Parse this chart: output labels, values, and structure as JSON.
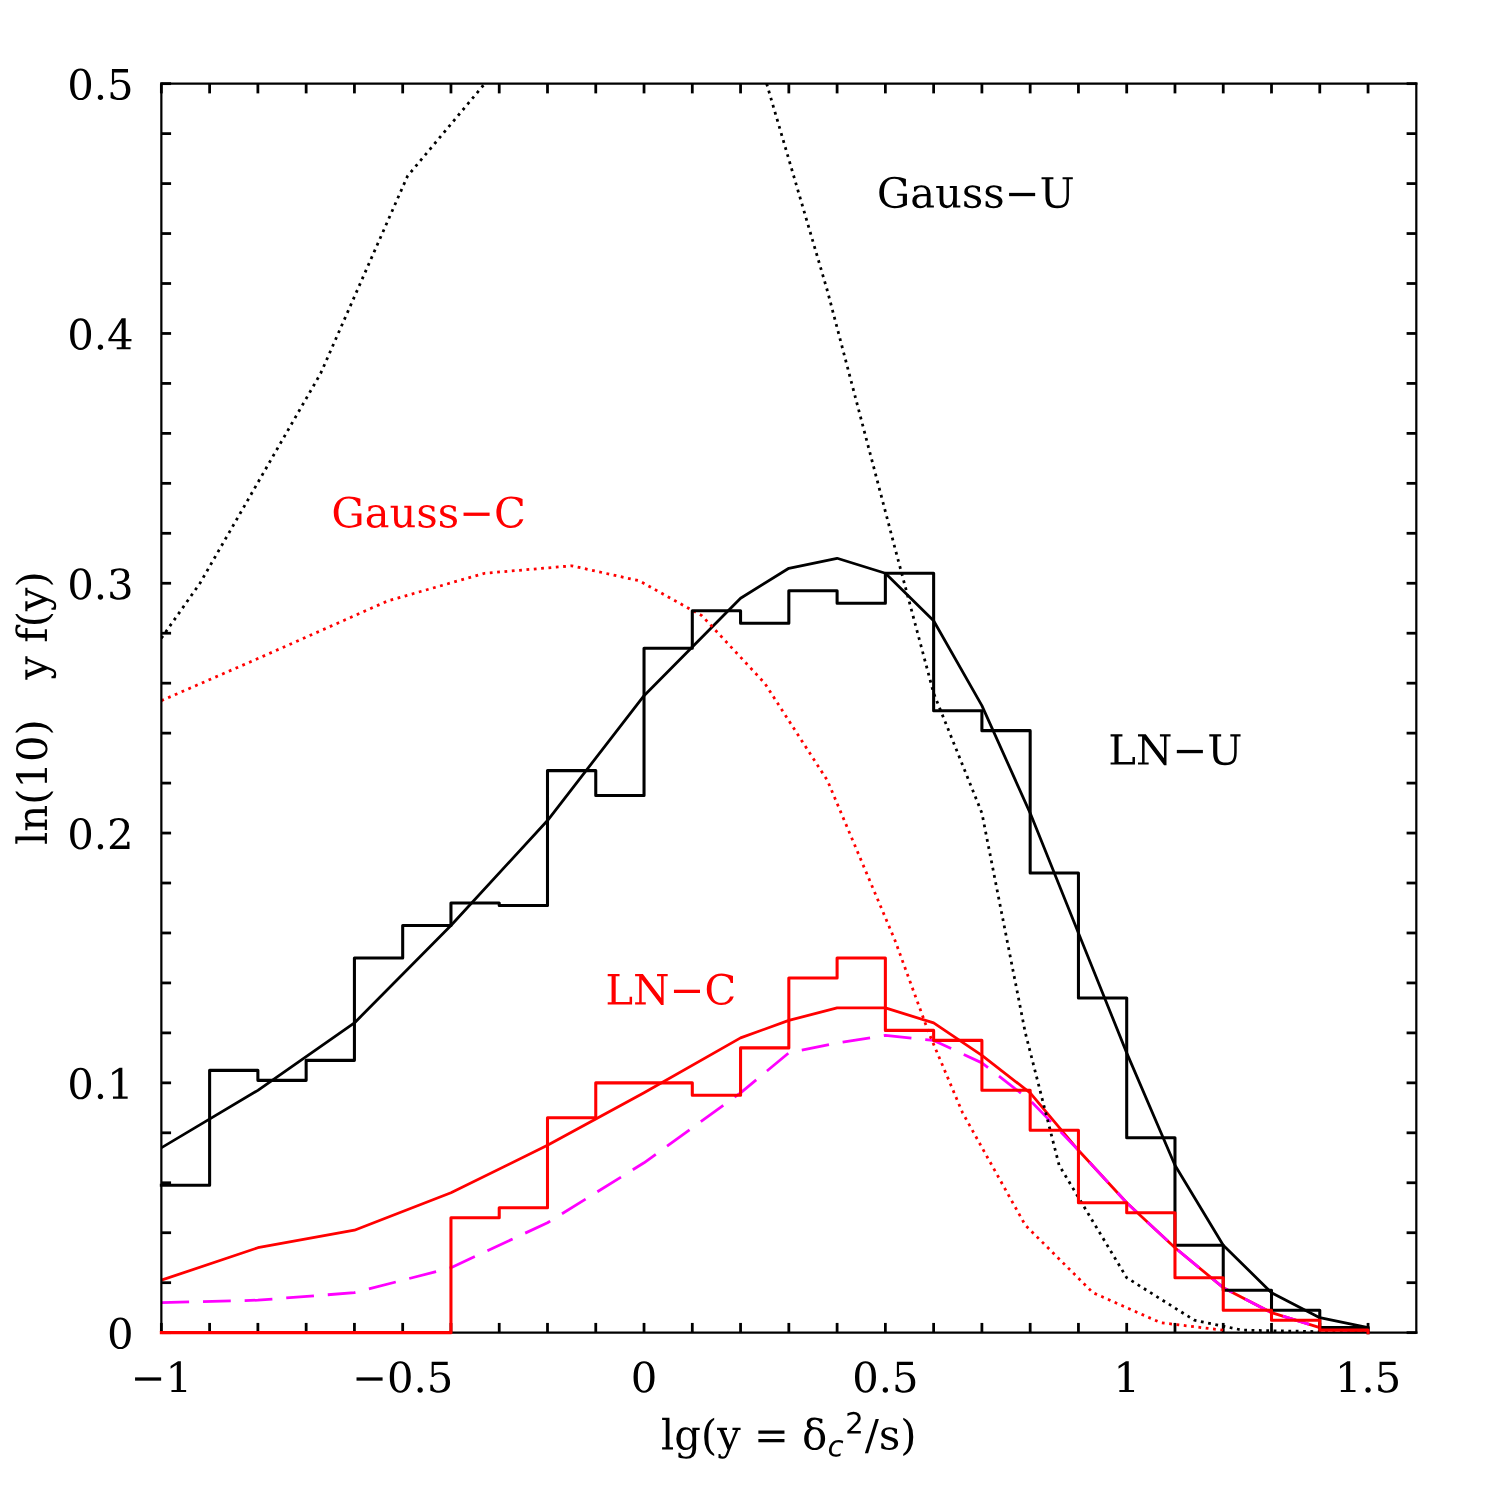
{
  "chart_data": {
    "type": "line",
    "xlabel": "lg(y = δ$_{c}$$^{2}$/s)",
    "ylabel": "ln(10)   y f(y)",
    "xlim": [
      -1,
      1.6
    ],
    "ylim": [
      0,
      0.5
    ],
    "xticks": [
      {
        "value": -1,
        "label": "−1"
      },
      {
        "value": -0.9,
        "label": null
      },
      {
        "value": -0.8,
        "label": null
      },
      {
        "value": -0.7,
        "label": null
      },
      {
        "value": -0.6,
        "label": null
      },
      {
        "value": -0.5,
        "label": "−0.5"
      },
      {
        "value": -0.4,
        "label": null
      },
      {
        "value": -0.3,
        "label": null
      },
      {
        "value": -0.2,
        "label": null
      },
      {
        "value": -0.1,
        "label": null
      },
      0,
      {
        "value": 0.1,
        "label": null
      },
      {
        "value": 0.2,
        "label": null
      },
      {
        "value": 0.3,
        "label": null
      },
      {
        "value": 0.4,
        "label": null
      },
      0.5,
      {
        "value": 0.6,
        "label": null
      },
      {
        "value": 0.7,
        "label": null
      },
      {
        "value": 0.8,
        "label": null
      },
      {
        "value": 0.9,
        "label": null
      },
      1,
      {
        "value": 1.1,
        "label": null
      },
      {
        "value": 1.2,
        "label": null
      },
      {
        "value": 1.3,
        "label": null
      },
      {
        "value": 1.4,
        "label": null
      },
      1.5
    ],
    "yticks": [
      0,
      {
        "value": 0.02,
        "label": null
      },
      {
        "value": 0.04,
        "label": null
      },
      {
        "value": 0.06,
        "label": null
      },
      {
        "value": 0.08,
        "label": null
      },
      0.1,
      {
        "value": 0.12,
        "label": null
      },
      {
        "value": 0.14,
        "label": null
      },
      {
        "value": 0.16,
        "label": null
      },
      {
        "value": 0.18,
        "label": null
      },
      0.2,
      {
        "value": 0.22,
        "label": null
      },
      {
        "value": 0.24,
        "label": null
      },
      {
        "value": 0.26,
        "label": null
      },
      {
        "value": 0.28,
        "label": null
      },
      0.3,
      {
        "value": 0.32,
        "label": null
      },
      {
        "value": 0.34,
        "label": null
      },
      {
        "value": 0.36,
        "label": null
      },
      {
        "value": 0.38,
        "label": null
      },
      0.4,
      {
        "value": 0.42,
        "label": null
      },
      {
        "value": 0.44,
        "label": null
      },
      {
        "value": 0.46,
        "label": null
      },
      {
        "value": 0.48,
        "label": null
      },
      0.5
    ],
    "grid": false,
    "legend": false,
    "series": [
      {
        "name": "LN−U",
        "color": "#000000",
        "line_style": "solid",
        "x": [
          -1,
          -0.8,
          -0.6,
          -0.4,
          -0.2,
          0,
          0.2,
          0.3,
          0.4,
          0.5,
          0.6,
          0.7,
          0.8,
          0.9,
          1,
          1.1,
          1.2,
          1.3,
          1.4,
          1.5
        ],
        "values": [
          0.074,
          0.097,
          0.124,
          0.163,
          0.205,
          0.255,
          0.294,
          0.306,
          0.31,
          0.304,
          0.285,
          0.251,
          0.208,
          0.16,
          0.112,
          0.067,
          0.035,
          0.016,
          0.006,
          0.002
        ]
      },
      {
        "name": "LN−C",
        "color": "#ff0000",
        "line_style": "solid",
        "x": [
          -1,
          -0.8,
          -0.6,
          -0.4,
          -0.2,
          0,
          0.2,
          0.3,
          0.4,
          0.5,
          0.6,
          0.7,
          0.8,
          0.9,
          1,
          1.1,
          1.2,
          1.3,
          1.4,
          1.5
        ],
        "values": [
          0.021,
          0.034,
          0.041,
          0.056,
          0.075,
          0.096,
          0.118,
          0.125,
          0.13,
          0.13,
          0.124,
          0.111,
          0.096,
          0.073,
          0.052,
          0.034,
          0.018,
          0.008,
          0.002,
          0
        ]
      },
      {
        "color": "#ff00ff",
        "line_style": "dashed",
        "x": [
          -1,
          -0.8,
          -0.6,
          -0.4,
          -0.2,
          0,
          0.2,
          0.3,
          0.4,
          0.5,
          0.6,
          0.7,
          0.8,
          0.9,
          1,
          1.1,
          1.2,
          1.3,
          1.4,
          1.5
        ],
        "values": [
          0.012,
          0.013,
          0.016,
          0.026,
          0.044,
          0.068,
          0.096,
          0.112,
          0.116,
          0.119,
          0.117,
          0.108,
          0.093,
          0.073,
          0.052,
          0.034,
          0.018,
          0.008,
          0.002,
          0
        ]
      },
      {
        "name": "Gauss−U",
        "color": "#000000",
        "line_style": "dotted",
        "x": [
          -1,
          -0.92,
          -0.67,
          -0.49,
          -0.33,
          0,
          0.254,
          0.38,
          0.52,
          0.6,
          0.7,
          0.79,
          0.86,
          1,
          1.14,
          1.24,
          1.5
        ],
        "values": [
          0.278,
          0.3,
          0.384,
          0.463,
          0.5,
          null,
          0.5,
          0.417,
          0.314,
          0.256,
          0.208,
          0.12,
          0.067,
          0.022,
          0.005,
          0.001,
          0
        ]
      },
      {
        "name": "Gauss−C",
        "color": "#ff0000",
        "line_style": "dotted",
        "x": [
          -1,
          -0.81,
          -0.53,
          -0.33,
          -0.15,
          -0.01,
          0.12,
          0.25,
          0.38,
          0.52,
          0.59,
          0.66,
          0.79,
          0.93,
          1.07,
          1.2
        ],
        "values": [
          0.253,
          0.269,
          0.293,
          0.304,
          0.307,
          0.301,
          0.287,
          0.26,
          0.221,
          0.157,
          0.12,
          0.088,
          0.043,
          0.016,
          0.004,
          0.001
        ]
      },
      {
        "type": "step",
        "color": "#000000",
        "line_style": "solid",
        "x": [
          -1,
          -0.9,
          -0.8,
          -0.7,
          -0.6,
          -0.5,
          -0.4,
          -0.3,
          -0.2,
          -0.1,
          0,
          0.1,
          0.2,
          0.3,
          0.4,
          0.5,
          0.6,
          0.7,
          0.8,
          0.9,
          1,
          1.1,
          1.2,
          1.3,
          1.4,
          1.5
        ],
        "values": [
          0.059,
          0.105,
          0.101,
          0.109,
          0.15,
          0.163,
          0.172,
          0.171,
          0.225,
          0.215,
          0.274,
          0.289,
          0.284,
          0.297,
          0.292,
          0.304,
          0.249,
          0.241,
          0.184,
          0.134,
          0.078,
          0.035,
          0.017,
          0.009,
          0.002,
          0
        ]
      },
      {
        "type": "step",
        "color": "#ff0000",
        "line_style": "solid",
        "x": [
          -1,
          -0.9,
          -0.8,
          -0.7,
          -0.6,
          -0.5,
          -0.4,
          -0.3,
          -0.2,
          -0.1,
          0,
          0.1,
          0.2,
          0.3,
          0.4,
          0.5,
          0.6,
          0.7,
          0.8,
          0.9,
          1,
          1.1,
          1.2,
          1.3,
          1.4,
          1.5
        ],
        "values": [
          0,
          0,
          0,
          0,
          0,
          0,
          0.046,
          0.05,
          0.086,
          0.1,
          0.1,
          0.095,
          0.114,
          0.142,
          0.15,
          0.121,
          0.117,
          0.097,
          0.081,
          0.052,
          0.048,
          0.022,
          0.009,
          0.005,
          0.001,
          0
        ]
      }
    ]
  }
}
